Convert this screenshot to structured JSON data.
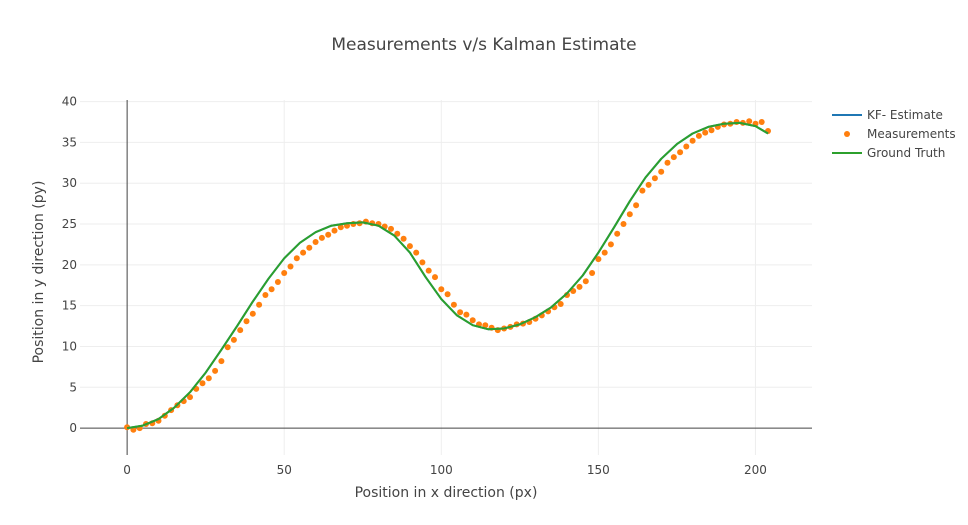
{
  "chart_data": {
    "type": "line",
    "title": "Measurements v/s Kalman Estimate",
    "xlabel": "Position in x direction (px)",
    "ylabel": "Position in y direction (py)",
    "xlim": [
      -15,
      218
    ],
    "ylim": [
      -3.3,
      40.2
    ],
    "xticks": [
      0,
      50,
      100,
      150,
      200
    ],
    "yticks": [
      0,
      5,
      10,
      15,
      20,
      25,
      30,
      35,
      40
    ],
    "grid": true,
    "legend_position": "top-right",
    "series": [
      {
        "name": "KF- Estimate",
        "mode": "lines",
        "color": "#1f77b4",
        "x": [
          0,
          5,
          10,
          15,
          20,
          25,
          30,
          35,
          40,
          45,
          50,
          55,
          60,
          65,
          70,
          75,
          80,
          85,
          90,
          95,
          100,
          105,
          110,
          115,
          120,
          125,
          130,
          135,
          140,
          145,
          150,
          155,
          160,
          165,
          170,
          175,
          180,
          185,
          190,
          195,
          200,
          204
        ],
        "y": [
          0,
          0.3,
          1.1,
          2.5,
          4.4,
          6.8,
          9.6,
          12.5,
          15.5,
          18.3,
          20.8,
          22.7,
          24.0,
          24.8,
          25.1,
          25.2,
          24.8,
          23.6,
          21.5,
          18.5,
          15.8,
          13.8,
          12.6,
          12.1,
          12.2,
          12.7,
          13.6,
          14.8,
          16.5,
          18.7,
          21.5,
          24.6,
          27.8,
          30.7,
          33.0,
          34.8,
          36.1,
          36.9,
          37.3,
          37.4,
          37.0,
          36.1
        ]
      },
      {
        "name": "Measurements",
        "mode": "markers",
        "color": "#ff7f0e",
        "x": [
          0,
          2,
          4,
          6,
          8,
          10,
          12,
          14,
          16,
          18,
          20,
          22,
          24,
          26,
          28,
          30,
          32,
          34,
          36,
          38,
          40,
          42,
          44,
          46,
          48,
          50,
          52,
          54,
          56,
          58,
          60,
          62,
          64,
          66,
          68,
          70,
          72,
          74,
          76,
          78,
          80,
          82,
          84,
          86,
          88,
          90,
          92,
          94,
          96,
          98,
          100,
          102,
          104,
          106,
          108,
          110,
          112,
          114,
          116,
          118,
          120,
          122,
          124,
          126,
          128,
          130,
          132,
          134,
          136,
          138,
          140,
          142,
          144,
          146,
          148,
          150,
          152,
          154,
          156,
          158,
          160,
          162,
          164,
          166,
          168,
          170,
          172,
          174,
          176,
          178,
          180,
          182,
          184,
          186,
          188,
          190,
          192,
          194,
          196,
          198,
          200,
          202,
          204
        ],
        "y": [
          0.1,
          -0.2,
          0.0,
          0.5,
          0.6,
          0.9,
          1.5,
          2.2,
          2.8,
          3.3,
          3.8,
          4.8,
          5.5,
          6.1,
          7.0,
          8.2,
          9.9,
          10.8,
          12.0,
          13.1,
          14.0,
          15.1,
          16.3,
          17.0,
          17.9,
          19.0,
          19.8,
          20.8,
          21.5,
          22.1,
          22.8,
          23.3,
          23.7,
          24.2,
          24.6,
          24.8,
          25.0,
          25.1,
          25.3,
          25.1,
          25.0,
          24.7,
          24.4,
          23.8,
          23.2,
          22.3,
          21.5,
          20.3,
          19.3,
          18.5,
          17.0,
          16.4,
          15.1,
          14.2,
          13.9,
          13.2,
          12.7,
          12.6,
          12.3,
          12.0,
          12.2,
          12.4,
          12.7,
          12.8,
          13.0,
          13.4,
          13.8,
          14.3,
          14.8,
          15.2,
          16.3,
          16.8,
          17.3,
          18.0,
          19.0,
          20.7,
          21.5,
          22.5,
          23.8,
          25.0,
          26.2,
          27.3,
          29.1,
          29.8,
          30.6,
          31.4,
          32.5,
          33.2,
          33.8,
          34.5,
          35.2,
          35.8,
          36.2,
          36.5,
          36.9,
          37.2,
          37.3,
          37.5,
          37.4,
          37.6,
          37.3,
          37.5,
          36.4
        ]
      },
      {
        "name": "Ground Truth",
        "mode": "lines",
        "color": "#2ca02c",
        "x": [
          0,
          5,
          10,
          15,
          20,
          25,
          30,
          35,
          40,
          45,
          50,
          55,
          60,
          65,
          70,
          75,
          80,
          85,
          90,
          95,
          100,
          105,
          110,
          115,
          120,
          125,
          130,
          135,
          140,
          145,
          150,
          155,
          160,
          165,
          170,
          175,
          180,
          185,
          190,
          195,
          200,
          204
        ],
        "y": [
          0,
          0.3,
          1.1,
          2.5,
          4.4,
          6.8,
          9.6,
          12.5,
          15.5,
          18.3,
          20.8,
          22.7,
          24.0,
          24.8,
          25.1,
          25.2,
          24.8,
          23.6,
          21.5,
          18.5,
          15.8,
          13.8,
          12.6,
          12.1,
          12.2,
          12.7,
          13.6,
          14.8,
          16.5,
          18.7,
          21.5,
          24.6,
          27.8,
          30.7,
          33.0,
          34.8,
          36.1,
          36.9,
          37.3,
          37.4,
          37.0,
          36.1
        ]
      }
    ]
  }
}
